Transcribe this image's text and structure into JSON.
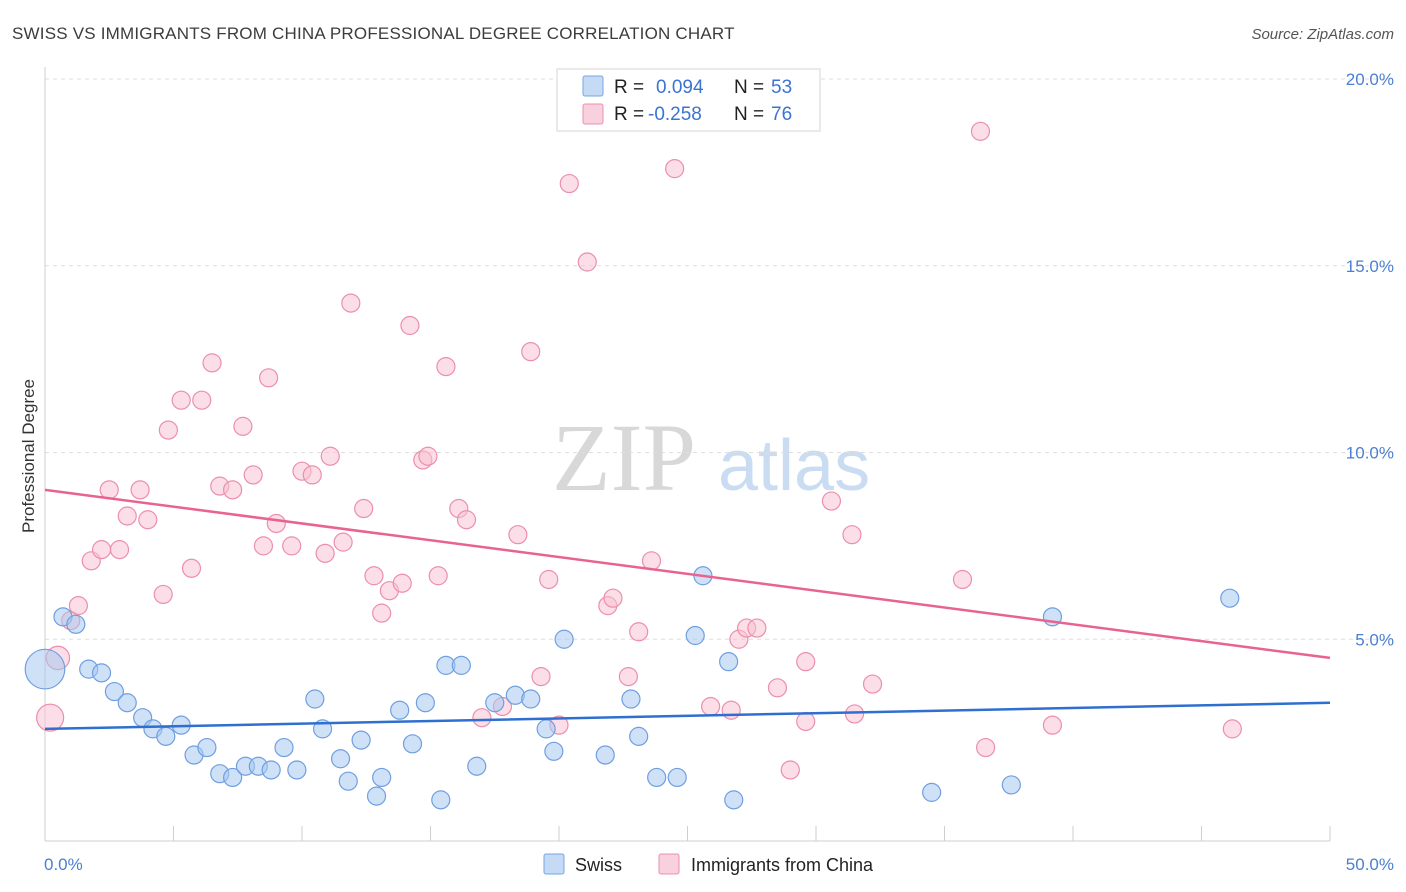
{
  "header": {
    "title": "SWISS VS IMMIGRANTS FROM CHINA PROFESSIONAL DEGREE CORRELATION CHART",
    "source": "Source: ZipAtlas.com"
  },
  "watermark": {
    "zip": "ZIP",
    "atlas": "atlas"
  },
  "legend": {
    "rows": [
      {
        "r_label": "R =",
        "r_value": "0.094",
        "n_label": "N =",
        "n_value": "53"
      },
      {
        "r_label": "R =",
        "r_value": "-0.258",
        "n_label": "N =",
        "n_value": "76"
      }
    ],
    "bottom": [
      "Swiss",
      "Immigrants from China"
    ]
  },
  "chart_data": {
    "type": "scatter",
    "title": "SWISS VS IMMIGRANTS FROM CHINA PROFESSIONAL DEGREE CORRELATION CHART",
    "xlabel": "",
    "ylabel": "Professional Degree",
    "xlim": [
      0,
      50
    ],
    "ylim": [
      0,
      20
    ],
    "x_tick_labels": [
      "0.0%",
      "50.0%"
    ],
    "y_ticks": [
      5,
      10,
      15,
      20
    ],
    "y_tick_labels": [
      "5.0%",
      "10.0%",
      "15.0%",
      "20.0%"
    ],
    "grid": "horizontal dashed",
    "legend_position": "top-center",
    "series": [
      {
        "name": "Swiss",
        "color": "#a8c8f0",
        "edge": "#6f9fe0",
        "line_color": "#2f6fcf",
        "trend": {
          "x": [
            0,
            50
          ],
          "y": [
            2.6,
            3.3
          ]
        },
        "points": [
          [
            0.0,
            4.2,
            2.2
          ],
          [
            0.7,
            5.6,
            1
          ],
          [
            1.2,
            5.4,
            1
          ],
          [
            1.7,
            4.2,
            1
          ],
          [
            2.2,
            4.1,
            1
          ],
          [
            2.7,
            3.6,
            1
          ],
          [
            3.2,
            3.3,
            1
          ],
          [
            3.8,
            2.9,
            1
          ],
          [
            4.2,
            2.6,
            1
          ],
          [
            4.7,
            2.4,
            1
          ],
          [
            5.3,
            2.7,
            1
          ],
          [
            5.8,
            1.9,
            1
          ],
          [
            6.3,
            2.1,
            1
          ],
          [
            6.8,
            1.4,
            1
          ],
          [
            7.3,
            1.3,
            1
          ],
          [
            7.8,
            1.6,
            1
          ],
          [
            8.3,
            1.6,
            1
          ],
          [
            8.8,
            1.5,
            1
          ],
          [
            9.3,
            2.1,
            1
          ],
          [
            9.8,
            1.5,
            1
          ],
          [
            10.5,
            3.4,
            1
          ],
          [
            10.8,
            2.6,
            1
          ],
          [
            11.5,
            1.8,
            1
          ],
          [
            11.8,
            1.2,
            1
          ],
          [
            12.3,
            2.3,
            1
          ],
          [
            12.9,
            0.8,
            1
          ],
          [
            13.1,
            1.3,
            1
          ],
          [
            13.8,
            3.1,
            1
          ],
          [
            14.3,
            2.2,
            1
          ],
          [
            14.8,
            3.3,
            1
          ],
          [
            15.4,
            0.7,
            1
          ],
          [
            15.6,
            4.3,
            1
          ],
          [
            16.2,
            4.3,
            1
          ],
          [
            16.8,
            1.6,
            1
          ],
          [
            17.5,
            3.3,
            1
          ],
          [
            18.3,
            3.5,
            1
          ],
          [
            18.9,
            3.4,
            1
          ],
          [
            19.5,
            2.6,
            1
          ],
          [
            19.8,
            2.0,
            1
          ],
          [
            20.2,
            5.0,
            1
          ],
          [
            21.8,
            1.9,
            1
          ],
          [
            22.8,
            3.4,
            1
          ],
          [
            23.1,
            2.4,
            1
          ],
          [
            23.8,
            1.3,
            1
          ],
          [
            24.6,
            1.3,
            1
          ],
          [
            25.3,
            5.1,
            1
          ],
          [
            25.6,
            6.7,
            1
          ],
          [
            26.6,
            4.4,
            1
          ],
          [
            26.8,
            0.7,
            1
          ],
          [
            34.5,
            0.9,
            1
          ],
          [
            37.6,
            1.1,
            1
          ],
          [
            39.2,
            5.6,
            1
          ],
          [
            46.1,
            6.1,
            1
          ]
        ]
      },
      {
        "name": "Immigrants from China",
        "color": "#f7c3d3",
        "edge": "#ec8fab",
        "line_color": "#e8638f",
        "trend": {
          "x": [
            0,
            50
          ],
          "y": [
            9.0,
            4.5
          ]
        },
        "points": [
          [
            0.2,
            2.9,
            1.5
          ],
          [
            0.5,
            4.5,
            1.3
          ],
          [
            1.0,
            5.5,
            1
          ],
          [
            1.3,
            5.9,
            1
          ],
          [
            1.8,
            7.1,
            1
          ],
          [
            2.2,
            7.4,
            1
          ],
          [
            2.5,
            9.0,
            1
          ],
          [
            2.9,
            7.4,
            1
          ],
          [
            3.2,
            8.3,
            1
          ],
          [
            3.7,
            9.0,
            1
          ],
          [
            4.0,
            8.2,
            1
          ],
          [
            4.6,
            6.2,
            1
          ],
          [
            4.8,
            10.6,
            1
          ],
          [
            5.3,
            11.4,
            1
          ],
          [
            5.7,
            6.9,
            1
          ],
          [
            6.1,
            11.4,
            1
          ],
          [
            6.5,
            12.4,
            1
          ],
          [
            6.8,
            9.1,
            1
          ],
          [
            7.3,
            9.0,
            1
          ],
          [
            7.7,
            10.7,
            1
          ],
          [
            8.1,
            9.4,
            1
          ],
          [
            8.5,
            7.5,
            1
          ],
          [
            8.7,
            12.0,
            1
          ],
          [
            9.0,
            8.1,
            1
          ],
          [
            9.6,
            7.5,
            1
          ],
          [
            10.0,
            9.5,
            1
          ],
          [
            10.4,
            9.4,
            1
          ],
          [
            10.9,
            7.3,
            1
          ],
          [
            11.1,
            9.9,
            1
          ],
          [
            11.6,
            7.6,
            1
          ],
          [
            11.9,
            14.0,
            1
          ],
          [
            12.4,
            8.5,
            1
          ],
          [
            12.8,
            6.7,
            1
          ],
          [
            13.1,
            5.7,
            1
          ],
          [
            13.4,
            6.3,
            1
          ],
          [
            13.9,
            6.5,
            1
          ],
          [
            14.2,
            13.4,
            1
          ],
          [
            14.7,
            9.8,
            1
          ],
          [
            14.9,
            9.9,
            1
          ],
          [
            15.3,
            6.7,
            1
          ],
          [
            15.6,
            12.3,
            1
          ],
          [
            16.1,
            8.5,
            1
          ],
          [
            16.4,
            8.2,
            1
          ],
          [
            17.0,
            2.9,
            1
          ],
          [
            17.8,
            3.2,
            1
          ],
          [
            18.4,
            7.8,
            1
          ],
          [
            18.9,
            12.7,
            1
          ],
          [
            19.3,
            4.0,
            1
          ],
          [
            19.6,
            6.6,
            1
          ],
          [
            20.0,
            2.7,
            1
          ],
          [
            20.4,
            17.2,
            1
          ],
          [
            21.1,
            15.1,
            1
          ],
          [
            21.9,
            5.9,
            1
          ],
          [
            22.1,
            6.1,
            1
          ],
          [
            22.7,
            4.0,
            1
          ],
          [
            23.1,
            5.2,
            1
          ],
          [
            23.6,
            7.1,
            1
          ],
          [
            24.5,
            17.6,
            1
          ],
          [
            25.9,
            3.2,
            1
          ],
          [
            26.7,
            3.1,
            1
          ],
          [
            27.0,
            5.0,
            1
          ],
          [
            27.3,
            5.3,
            1
          ],
          [
            27.7,
            5.3,
            1
          ],
          [
            28.5,
            3.7,
            1
          ],
          [
            29.0,
            1.5,
            1
          ],
          [
            29.6,
            2.8,
            1
          ],
          [
            29.6,
            4.4,
            1
          ],
          [
            30.6,
            8.7,
            1
          ],
          [
            31.4,
            7.8,
            1
          ],
          [
            31.5,
            3.0,
            1
          ],
          [
            32.2,
            3.8,
            1
          ],
          [
            35.7,
            6.6,
            1
          ],
          [
            36.4,
            18.6,
            1
          ],
          [
            36.6,
            2.1,
            1
          ],
          [
            39.2,
            2.7,
            1
          ],
          [
            46.2,
            2.6,
            1
          ]
        ]
      }
    ]
  }
}
